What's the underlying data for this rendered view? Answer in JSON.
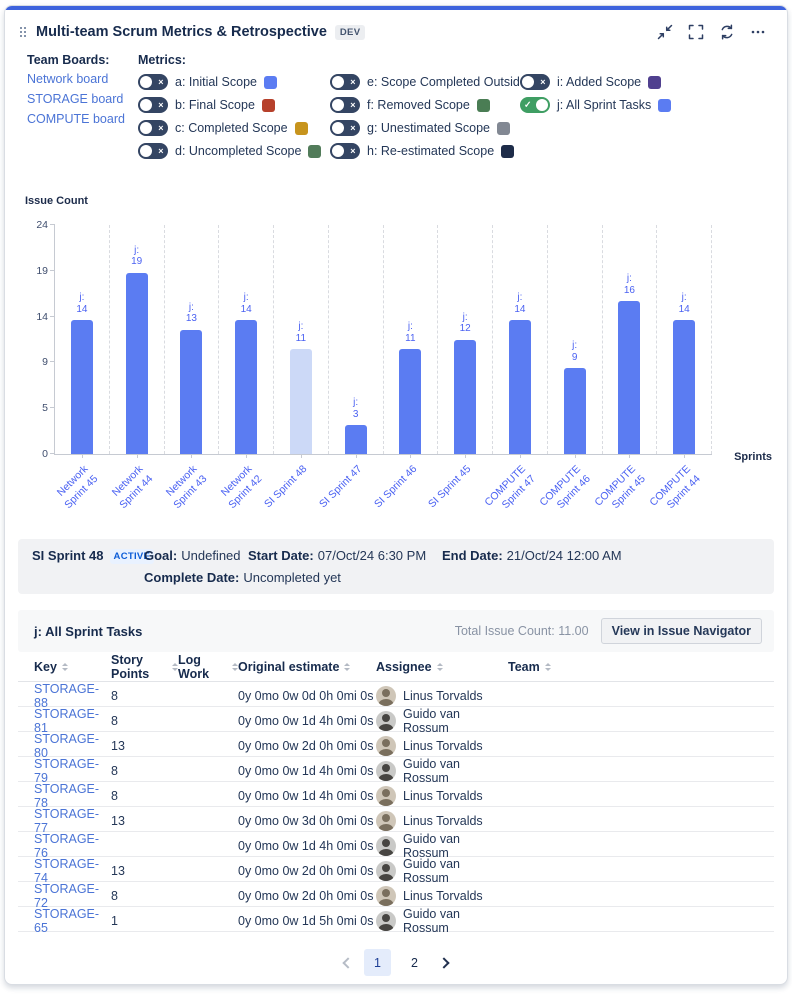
{
  "header": {
    "title": "Multi-team Scrum Metrics & Retrospective",
    "badge": "DEV",
    "icons": [
      "drag-handle-icon",
      "collapse-icon",
      "fullscreen-icon",
      "refresh-icon",
      "more-icon"
    ]
  },
  "team_boards": {
    "label": "Team Boards:",
    "boards": [
      "Network board",
      "STORAGE board",
      "COMPUTE board"
    ]
  },
  "metrics": {
    "label": "Metrics:",
    "columns": [
      4,
      4,
      2
    ],
    "items": [
      {
        "key": "a",
        "label": "a: Initial Scope",
        "color": "#5b7cf2",
        "enabled": false
      },
      {
        "key": "b",
        "label": "b: Final Scope",
        "color": "#b6402b",
        "enabled": false
      },
      {
        "key": "c",
        "label": "c: Completed Scope",
        "color": "#c7941d",
        "enabled": false
      },
      {
        "key": "d",
        "label": "d: Uncompleted Scope",
        "color": "#527c5a",
        "enabled": false
      },
      {
        "key": "e",
        "label": "e: Scope Completed Outside",
        "color": "#4d97a8",
        "enabled": false
      },
      {
        "key": "f",
        "label": "f: Removed Scope",
        "color": "#4a7d54",
        "enabled": false
      },
      {
        "key": "g",
        "label": "g: Unestimated Scope",
        "color": "#828893",
        "enabled": false
      },
      {
        "key": "h",
        "label": "h: Re-estimated Scope",
        "color": "#1e2c49",
        "enabled": false
      },
      {
        "key": "i",
        "label": "i: Added Scope",
        "color": "#50408f",
        "enabled": false
      },
      {
        "key": "j",
        "label": "j: All Sprint Tasks",
        "color": "#5b7cf2",
        "enabled": true
      }
    ]
  },
  "chart_data": {
    "type": "bar",
    "title": "",
    "ylabel": "Issue Count",
    "xlabel": "Sprints",
    "ylim": [
      0,
      24
    ],
    "ytick_labels": [
      "0",
      "5",
      "9",
      "14",
      "19",
      "24"
    ],
    "grid": "vertical-dashed",
    "categories": [
      "Network Sprint 45",
      "Network Sprint 44",
      "Network Sprint 43",
      "Network Sprint 42",
      "SI Sprint 48",
      "SI Sprint 47",
      "SI Sprint 46",
      "SI Sprint 45",
      "COMPUTE Sprint 47",
      "COMPUTE Sprint 46",
      "COMPUTE Sprint 45",
      "COMPUTE Sprint 44"
    ],
    "series": [
      {
        "name": "j",
        "values": [
          14,
          19,
          13,
          14,
          11,
          3,
          11,
          12,
          14,
          9,
          16,
          14
        ]
      }
    ],
    "bar_color": "#5b7cf2",
    "highlight_index": 4,
    "highlight_color": "#ccd9f7",
    "label_color": "#4a61f2"
  },
  "sprint_info": {
    "name": "SI Sprint 48",
    "status": "ACTIVE",
    "goal_label": "Goal:",
    "goal": "Undefined",
    "start_label": "Start Date:",
    "start": "07/Oct/24 6:30 PM",
    "end_label": "End Date:",
    "end": "21/Oct/24 12:00 AM",
    "complete_label": "Complete Date:",
    "complete": "Uncompleted yet"
  },
  "issues": {
    "section_title": "j: All Sprint Tasks",
    "total_label": "Total Issue Count: 11.00",
    "button": "View in Issue Navigator",
    "columns": [
      "Key",
      "Story Points",
      "Log Work",
      "Original estimate",
      "Assignee",
      "Team"
    ],
    "rows": [
      {
        "key": "STORAGE-88",
        "story_points": "8",
        "log_work": "",
        "original_estimate": "0y 0mo 0w 0d 0h 0mi 0s",
        "assignee": "Linus Torvalds",
        "team": ""
      },
      {
        "key": "STORAGE-81",
        "story_points": "8",
        "log_work": "",
        "original_estimate": "0y 0mo 0w 1d 4h 0mi 0s",
        "assignee": "Guido van Rossum",
        "team": ""
      },
      {
        "key": "STORAGE-80",
        "story_points": "13",
        "log_work": "",
        "original_estimate": "0y 0mo 0w 2d 0h 0mi 0s",
        "assignee": "Linus Torvalds",
        "team": ""
      },
      {
        "key": "STORAGE-79",
        "story_points": "8",
        "log_work": "",
        "original_estimate": "0y 0mo 0w 1d 4h 0mi 0s",
        "assignee": "Guido van Rossum",
        "team": ""
      },
      {
        "key": "STORAGE-78",
        "story_points": "8",
        "log_work": "",
        "original_estimate": "0y 0mo 0w 1d 4h 0mi 0s",
        "assignee": "Linus Torvalds",
        "team": ""
      },
      {
        "key": "STORAGE-77",
        "story_points": "13",
        "log_work": "",
        "original_estimate": "0y 0mo 0w 3d 0h 0mi 0s",
        "assignee": "Linus Torvalds",
        "team": ""
      },
      {
        "key": "STORAGE-76",
        "story_points": "",
        "log_work": "",
        "original_estimate": "0y 0mo 0w 1d 4h 0mi 0s",
        "assignee": "Guido van Rossum",
        "team": ""
      },
      {
        "key": "STORAGE-74",
        "story_points": "13",
        "log_work": "",
        "original_estimate": "0y 0mo 0w 2d 0h 0mi 0s",
        "assignee": "Guido van Rossum",
        "team": ""
      },
      {
        "key": "STORAGE-72",
        "story_points": "8",
        "log_work": "",
        "original_estimate": "0y 0mo 0w 2d 0h 0mi 0s",
        "assignee": "Linus Torvalds",
        "team": ""
      },
      {
        "key": "STORAGE-65",
        "story_points": "1",
        "log_work": "",
        "original_estimate": "0y 0mo 0w 1d 5h 0mi 0s",
        "assignee": "Guido van Rossum",
        "team": ""
      }
    ],
    "pagination": {
      "pages": [
        "1",
        "2"
      ],
      "active_page": "1"
    }
  }
}
